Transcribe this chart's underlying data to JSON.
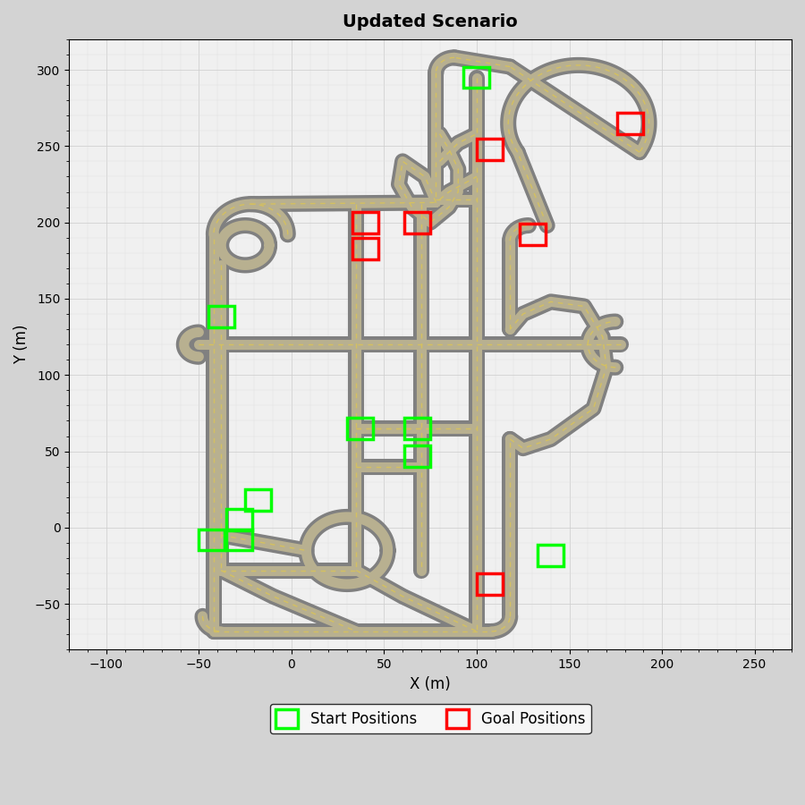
{
  "title": "Updated Scenario",
  "xlabel": "X (m)",
  "ylabel": "Y (m)",
  "xlim": [
    -120,
    270
  ],
  "ylim": [
    -80,
    320
  ],
  "xticks": [
    -100,
    -50,
    0,
    50,
    100,
    150,
    200,
    250
  ],
  "yticks": [
    -50,
    0,
    50,
    100,
    150,
    200,
    250,
    300
  ],
  "fig_bg_color": "#d3d3d3",
  "axes_bg_color": "#f0f0f0",
  "start_positions": [
    [
      100,
      295
    ],
    [
      -38,
      138
    ],
    [
      37,
      65
    ],
    [
      68,
      65
    ],
    [
      68,
      47
    ],
    [
      -18,
      18
    ],
    [
      -28,
      5
    ],
    [
      -28,
      -8
    ],
    [
      -43,
      -8
    ],
    [
      140,
      -18
    ]
  ],
  "goal_positions": [
    [
      183,
      265
    ],
    [
      107,
      248
    ],
    [
      40,
      200
    ],
    [
      68,
      200
    ],
    [
      40,
      183
    ],
    [
      130,
      192
    ],
    [
      107,
      -37
    ]
  ],
  "start_color": "#00ff00",
  "goal_color": "#ff0000",
  "road_color_dark": "#808080",
  "road_color_mid": "#b8b090",
  "road_color_yellow": "#d4c060",
  "grid_color": "#cccccc",
  "minor_grid_color": "#e0e0e0"
}
